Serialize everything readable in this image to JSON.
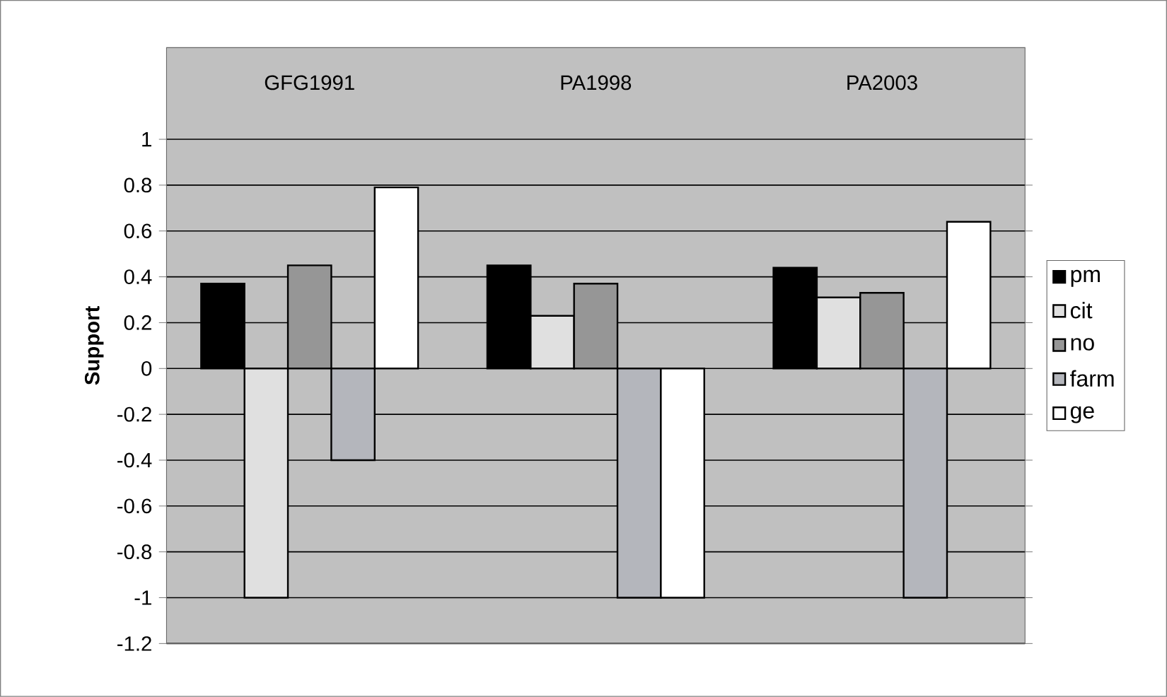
{
  "chart_data": {
    "type": "bar",
    "ylabel": "Support",
    "categories": [
      "GFG1991",
      "PA1998",
      "PA2003"
    ],
    "series": [
      {
        "name": "pm",
        "color": "#000000",
        "values": [
          0.37,
          0.45,
          0.44
        ]
      },
      {
        "name": "cit",
        "color": "#e0e0e0",
        "values": [
          -1,
          0.23,
          0.31
        ]
      },
      {
        "name": "no",
        "color": "#969696",
        "values": [
          0.45,
          0.37,
          0.33
        ]
      },
      {
        "name": "farm",
        "color": "#b4b6bc",
        "values": [
          -0.4,
          -1,
          -1
        ]
      },
      {
        "name": "ge",
        "color": "#ffffff",
        "values": [
          0.79,
          -1,
          0.64
        ]
      }
    ],
    "ylim": [
      -1.2,
      1.4
    ],
    "yticks": [
      -1.2,
      -1,
      -0.8,
      -0.6,
      -0.4,
      -0.2,
      0,
      0.2,
      0.4,
      0.6,
      0.8,
      1
    ],
    "grid": "y",
    "legend": "right"
  }
}
